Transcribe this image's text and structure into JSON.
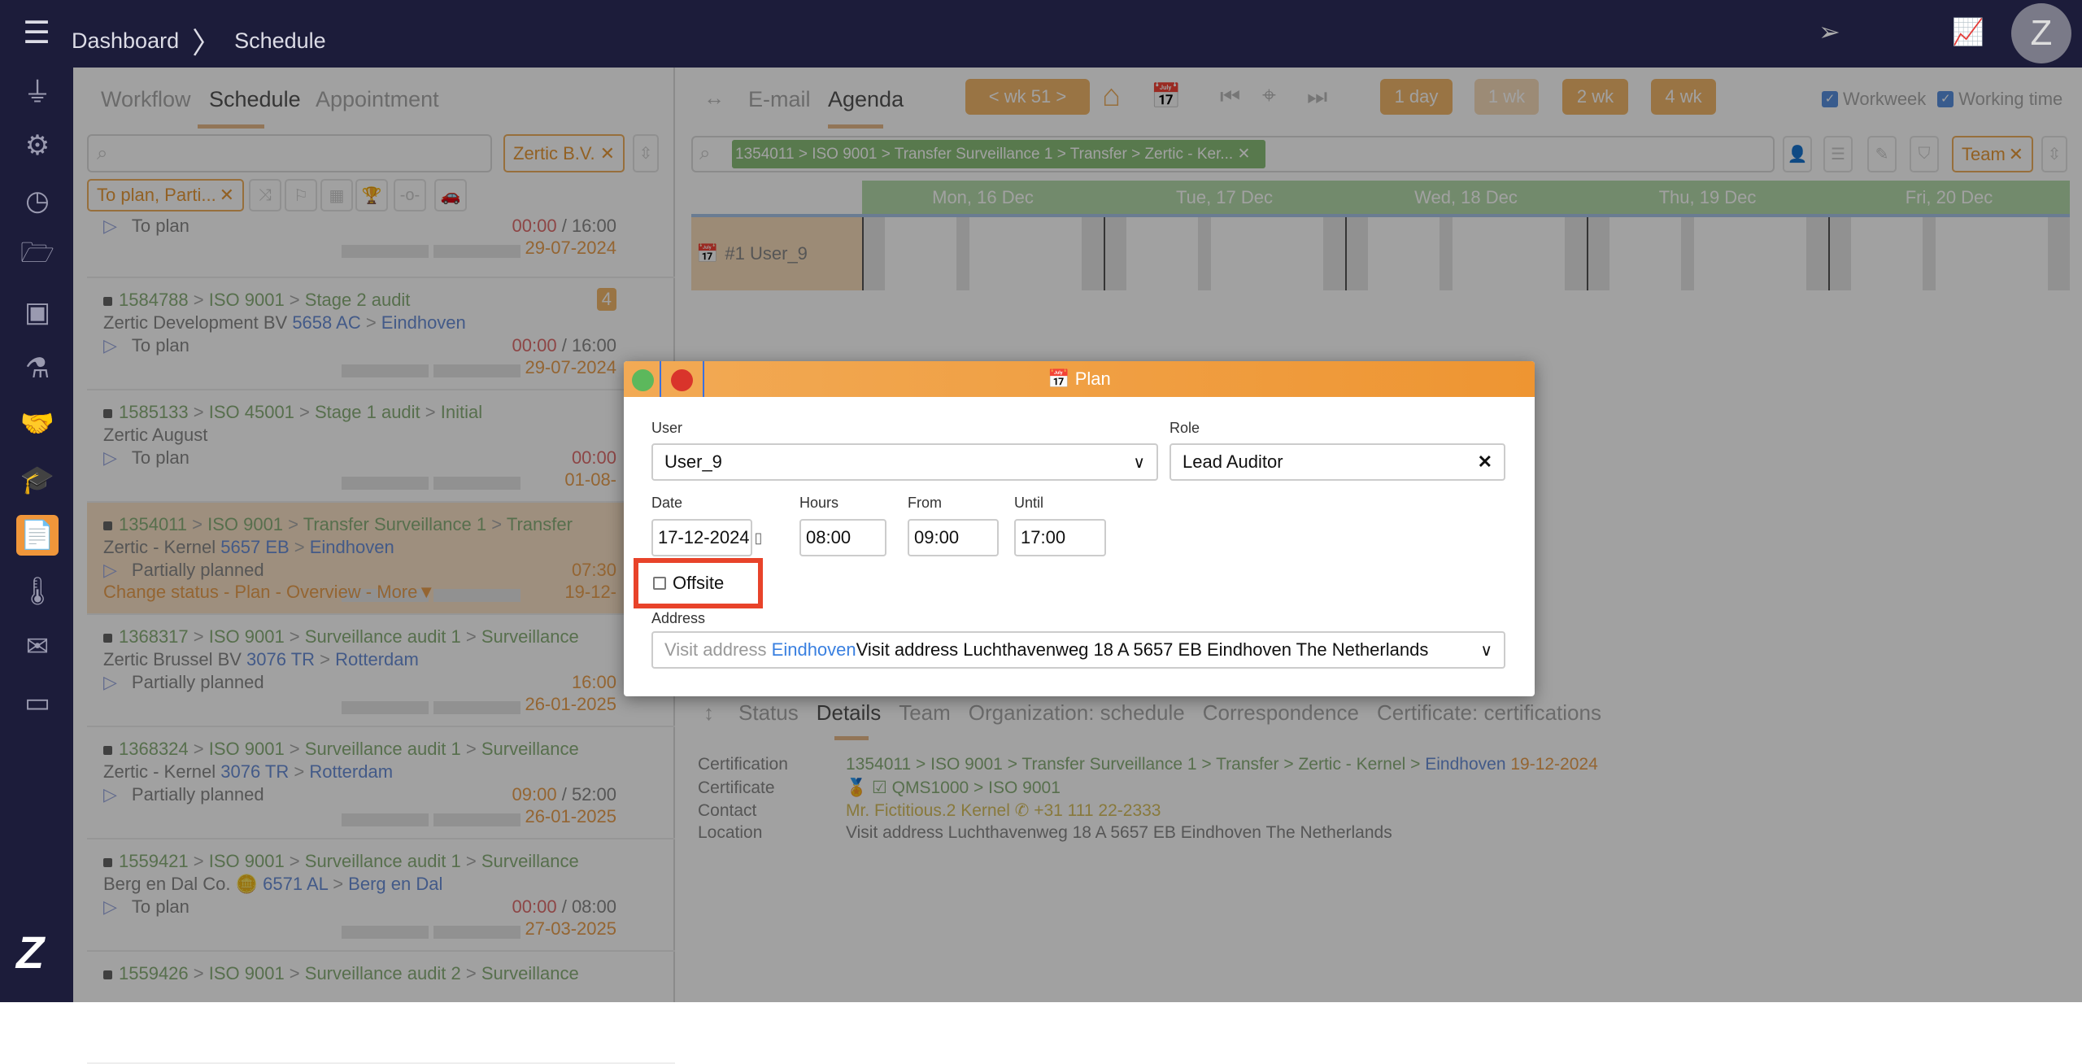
{
  "header": {
    "breadcrumb": [
      "Dashboard",
      "Schedule"
    ],
    "avatar": "Z"
  },
  "sidebar": {
    "items": [
      {
        "icon": "plug-icon",
        "glyph": "⏚"
      },
      {
        "icon": "gear-icon",
        "glyph": "⚙"
      },
      {
        "icon": "clock-icon",
        "glyph": "◷"
      },
      {
        "icon": "folder-open-icon",
        "glyph": "🗁"
      },
      {
        "icon": "contact-card-icon",
        "glyph": "▣"
      },
      {
        "icon": "flask-icon",
        "glyph": "⚗"
      },
      {
        "icon": "handshake-icon",
        "glyph": "🤝"
      },
      {
        "icon": "graduation-cap-icon",
        "glyph": "🎓"
      },
      {
        "icon": "certificate-document-icon",
        "glyph": "📄",
        "active": true
      },
      {
        "icon": "thermometer-icon",
        "glyph": "🌡"
      },
      {
        "icon": "envelope-icon",
        "glyph": "✉"
      },
      {
        "icon": "calendar-icon",
        "glyph": "▭"
      }
    ],
    "logo": "Z"
  },
  "left": {
    "tabs": [
      "Workflow",
      "Schedule",
      "Appointment"
    ],
    "active_tab": "Schedule",
    "search_placeholder": "",
    "org_filter": "Zertic B.V.",
    "status_filter": "To plan, Parti...",
    "items": [
      {
        "status": "To plan",
        "spent": "00:00",
        "total": "16:00",
        "date": "29-07-2024"
      },
      {
        "id": "1584788",
        "path": [
          "ISO 9001",
          "Stage 2 audit"
        ],
        "org": "Zertic Development BV",
        "postcode": "5658 AC",
        "city": "Eindhoven",
        "status": "To plan",
        "spent": "00:00",
        "total": "16:00",
        "date": "29-07-2024",
        "badge": "4"
      },
      {
        "id": "1585133",
        "path": [
          "ISO 45001",
          "Stage 1 audit",
          "Initial"
        ],
        "org": "Zertic August",
        "status": "To plan",
        "spent": "00:00",
        "total": "",
        "date": "01-08-"
      },
      {
        "id": "1354011",
        "path": [
          "ISO 9001",
          "Transfer Surveillance 1",
          "Transfer"
        ],
        "org": "Zertic - Kernel",
        "postcode": "5657 EB",
        "city": "Eindhoven",
        "status": "Partially planned",
        "spent": "07:30",
        "total": "",
        "date": "19-12-",
        "selected": true,
        "actions": "Change status - Plan - Overview - More▼"
      },
      {
        "id": "1368317",
        "path": [
          "ISO 9001",
          "Surveillance audit 1",
          "Surveillance"
        ],
        "org": "Zertic Brussel BV",
        "postcode": "3076 TR",
        "city": "Rotterdam",
        "status": "Partially planned",
        "spent": "16:00",
        "total": "",
        "date": "26-01-2025"
      },
      {
        "id": "1368324",
        "path": [
          "ISO 9001",
          "Surveillance audit 1",
          "Surveillance"
        ],
        "org": "Zertic - Kernel",
        "postcode": "3076 TR",
        "city": "Rotterdam",
        "status": "Partially planned",
        "spent": "09:00",
        "total": "52:00",
        "date": "26-01-2025"
      },
      {
        "id": "1559421",
        "path": [
          "ISO 9001",
          "Surveillance audit 1",
          "Surveillance"
        ],
        "org": "Berg en Dal Co.",
        "coins": true,
        "postcode": "6571 AL",
        "city": "Berg en Dal",
        "status": "To plan",
        "spent": "00:00",
        "total": "08:00",
        "date": "27-03-2025"
      },
      {
        "id": "1559426",
        "path": [
          "ISO 9001",
          "Surveillance audit 2",
          "Surveillance"
        ]
      }
    ]
  },
  "right": {
    "tabs": [
      "E-mail",
      "Agenda"
    ],
    "active_tab": "Agenda",
    "week": "< wk 51 >",
    "ranges": [
      "1 day",
      "1 wk",
      "2 wk",
      "4 wk"
    ],
    "active_range": "1 wk",
    "workweek": {
      "label": "Workweek",
      "checked": true
    },
    "working_time": {
      "label": "Working time",
      "checked": true
    },
    "filter_chip": "1354011 > ISO 9001 > Transfer Surveillance 1 > Transfer > Zertic - Ker...",
    "team_chip": "Team",
    "days": [
      "Mon, 16 Dec",
      "Tue, 17 Dec",
      "Wed, 18 Dec",
      "Thu, 19 Dec",
      "Fri, 20 Dec"
    ],
    "row_user": "#1 User_9",
    "bottom_tabs": [
      "Status",
      "Details",
      "Team",
      "Organization: schedule",
      "Correspondence",
      "Certificate: certifications"
    ],
    "active_bottom_tab": "Details",
    "details": {
      "certification_label": "Certification",
      "certification": "1354011 > ISO 9001 > Transfer Surveillance 1 > Transfer > Zertic - Kernel > ",
      "certification_city": "Eindhoven",
      "certification_date": "19-12-2024",
      "certificate_label": "Certificate",
      "certificate": "QMS1000 > ISO 9001",
      "contact_label": "Contact",
      "contact": "Mr. Fictitious.2 Kernel",
      "phone": "+31 111 22-2333",
      "location_label": "Location",
      "location": "Visit address Luchthavenweg 18 A 5657 EB Eindhoven The Netherlands"
    }
  },
  "modal": {
    "title": "Plan",
    "user_label": "User",
    "user": "User_9",
    "role_label": "Role",
    "role": "Lead Auditor",
    "date_label": "Date",
    "date": "17-12-2024",
    "hours_label": "Hours",
    "hours": "08:00",
    "from_label": "From",
    "from": "09:00",
    "until_label": "Until",
    "until": "17:00",
    "offsite_label": "Offsite",
    "offsite": false,
    "address_label": "Address",
    "address_prefix": "Visit address ",
    "address_city": "Eindhoven",
    "address": "Visit address Luchthavenweg 18 A 5657 EB Eindhoven The Netherlands",
    "colors": {
      "header": "#f0a048",
      "confirm": "#5cb85c",
      "cancel": "#d9342b",
      "highlight": "#e8432a"
    }
  }
}
